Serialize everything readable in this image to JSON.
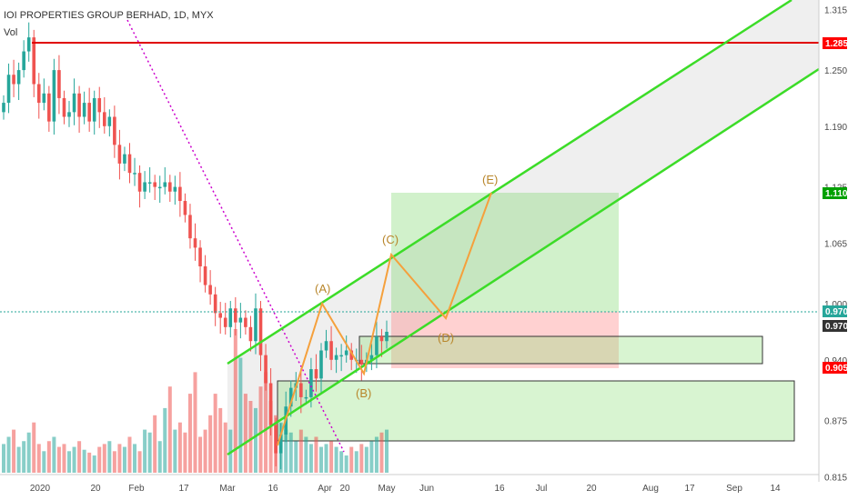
{
  "header": {
    "title": "IOI PROPERTIES GROUP BERHAD, 1D, MYX",
    "indicator": "Vol"
  },
  "chart_data": {
    "type": "candlestick",
    "ylim": [
      0.79,
      1.325
    ],
    "y_ticks": [
      "1.315",
      "1.250",
      "1.190",
      "1.125",
      "1.065",
      "1.000",
      "0.940",
      "0.875",
      "0.815"
    ],
    "x_ticks": [
      "2020",
      "20",
      "Feb",
      "17",
      "Mar",
      "16",
      "Apr",
      "20",
      "May",
      "Jun",
      "16",
      "Jul",
      "20",
      "Aug",
      "17",
      "Sep",
      "14"
    ],
    "price_badges": [
      {
        "value": "1.285",
        "color": "#ff0000"
      },
      {
        "value": "1.110",
        "color": "#00a000"
      },
      {
        "value": "0.970",
        "color": "#26a69a"
      },
      {
        "value": "0.970",
        "color": "#333333"
      },
      {
        "value": "0.905",
        "color": "#ff0000"
      }
    ],
    "resistance_line": {
      "value": 1.285,
      "color": "#e00000"
    },
    "current_price": 0.97,
    "wave_labels": [
      "(A)",
      "(B)",
      "(C)",
      "(D)",
      "(E)"
    ],
    "colors": {
      "up": "#26a69a",
      "down": "#ef5350",
      "channel": "#3cdc28",
      "wave": "#f5a03c",
      "trend": "#cc00cc"
    },
    "close_series": [
      1.215,
      1.245,
      1.235,
      1.25,
      1.27,
      1.285,
      1.235,
      1.215,
      1.225,
      1.195,
      1.25,
      1.22,
      1.2,
      1.205,
      1.225,
      1.2,
      1.215,
      1.195,
      1.22,
      1.205,
      1.19,
      1.2,
      1.17,
      1.15,
      1.16,
      1.14,
      1.14,
      1.12,
      1.13,
      1.13,
      1.125,
      1.125,
      1.13,
      1.12,
      1.125,
      1.11,
      1.095,
      1.07,
      1.06,
      1.04,
      1.02,
      1.01,
      0.99,
      0.985,
      0.975,
      0.995,
      0.98,
      0.985,
      0.975,
      0.96,
      0.995,
      0.945,
      0.915,
      0.87,
      0.84,
      0.86,
      0.89,
      0.91,
      0.915,
      0.9,
      0.9,
      0.93,
      0.92,
      0.95,
      0.96,
      0.94,
      0.945,
      0.945,
      0.95,
      0.94,
      0.94,
      0.935,
      0.94,
      0.945,
      0.965,
      0.96,
      0.97
    ],
    "volume_series": [
      0.2,
      0.25,
      0.3,
      0.18,
      0.22,
      0.28,
      0.35,
      0.2,
      0.15,
      0.22,
      0.25,
      0.18,
      0.2,
      0.15,
      0.18,
      0.22,
      0.16,
      0.14,
      0.12,
      0.18,
      0.2,
      0.22,
      0.15,
      0.2,
      0.18,
      0.25,
      0.2,
      0.15,
      0.3,
      0.28,
      0.4,
      0.22,
      0.45,
      0.6,
      0.3,
      0.35,
      0.28,
      0.55,
      0.7,
      0.25,
      0.3,
      0.4,
      0.55,
      0.45,
      0.35,
      0.3,
      1.0,
      0.8,
      0.55,
      0.5,
      0.45,
      0.6,
      0.7,
      0.5,
      0.4,
      0.35,
      0.3,
      0.28,
      0.22,
      0.3,
      0.25,
      0.2,
      0.25,
      0.18,
      0.2,
      0.22,
      0.18,
      0.15,
      0.12,
      0.18,
      0.15,
      0.2,
      0.18,
      0.22,
      0.25,
      0.28,
      0.3
    ]
  }
}
